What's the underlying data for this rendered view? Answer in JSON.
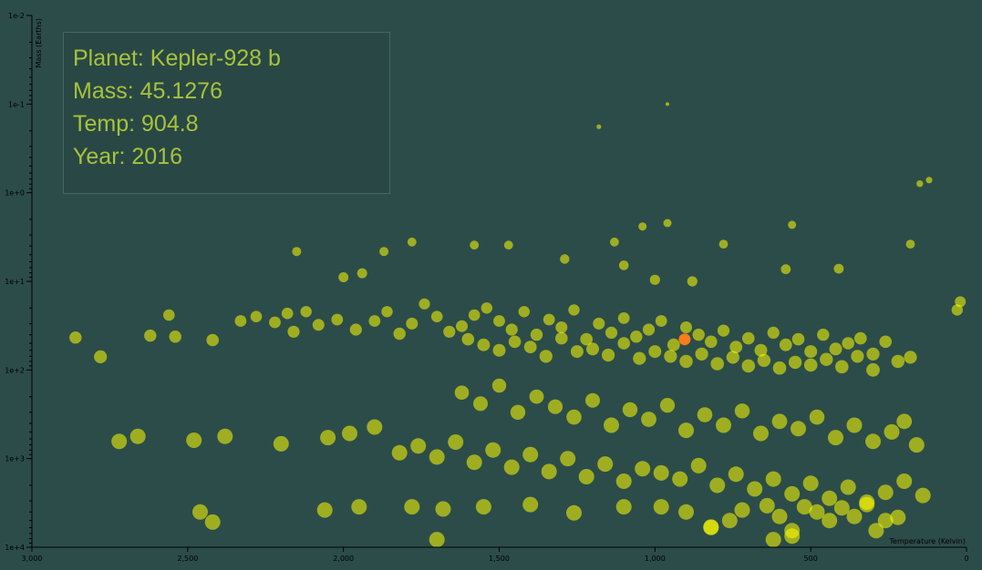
{
  "tooltip": {
    "planet_label": "Planet: Kepler-928 b",
    "mass_label": "Mass: 45.1276",
    "temp_label": "Temp: 904.8",
    "year_label": "Year: 2016"
  },
  "colors": {
    "background": "#2c4c4a",
    "point": "#ffff00",
    "highlight": "#ff7a1a",
    "axis": "#000000",
    "tooltip_text": "#a8c23c",
    "tooltip_border": "#4b6560"
  },
  "chart_data": {
    "type": "scatter",
    "xlabel": "Temperature (Kelvin)",
    "ylabel": "Mass (Earths)",
    "x_scale": "linear",
    "x_reversed": true,
    "xlim": [
      3000,
      0
    ],
    "y_scale": "log",
    "y_reversed": true,
    "ylim": [
      0.01,
      10000
    ],
    "x_ticks": [
      3000,
      2500,
      2000,
      1500,
      1000,
      500,
      0
    ],
    "x_tick_labels": [
      "3,000",
      "2,500",
      "2,000",
      "1,500",
      "1,000",
      "500",
      "0"
    ],
    "y_ticks": [
      0.01,
      0.1,
      1,
      10,
      100,
      1000,
      10000
    ],
    "y_tick_labels": [
      "1e-2",
      "1e-1",
      "1e+0",
      "1e+1",
      "1e+2",
      "1e+3",
      "1e+4"
    ],
    "grid": false,
    "point_size_encodes": "mass",
    "highlighted": {
      "name": "Kepler-928 b",
      "x": 904.8,
      "y": 45.1276,
      "year": 2016
    },
    "points": [
      [
        1180,
        0.18
      ],
      [
        960,
        0.1
      ],
      [
        120,
        0.72
      ],
      [
        150,
        0.79
      ],
      [
        2150,
        4.6
      ],
      [
        1940,
        8.1
      ],
      [
        1870,
        4.6
      ],
      [
        1780,
        3.6
      ],
      [
        1130,
        3.6
      ],
      [
        960,
        2.2
      ],
      [
        780,
        3.8
      ],
      [
        560,
        2.3
      ],
      [
        180,
        3.8
      ],
      [
        1040,
        2.4
      ],
      [
        2000,
        9
      ],
      [
        1580,
        3.9
      ],
      [
        1470,
        3.9
      ],
      [
        1290,
        5.6
      ],
      [
        1100,
        6.6
      ],
      [
        1000,
        9.6
      ],
      [
        880,
        10
      ],
      [
        580,
        7.3
      ],
      [
        410,
        7.2
      ],
      [
        20,
        17
      ],
      [
        30,
        21
      ],
      [
        2860,
        43
      ],
      [
        2780,
        71
      ],
      [
        2620,
        41
      ],
      [
        2560,
        24
      ],
      [
        2540,
        42
      ],
      [
        2420,
        46
      ],
      [
        2330,
        28
      ],
      [
        2280,
        25
      ],
      [
        2220,
        29
      ],
      [
        2180,
        23
      ],
      [
        2160,
        37
      ],
      [
        2120,
        22
      ],
      [
        2080,
        31
      ],
      [
        2020,
        27
      ],
      [
        1960,
        35
      ],
      [
        1900,
        28
      ],
      [
        1860,
        22
      ],
      [
        1820,
        39
      ],
      [
        1780,
        30
      ],
      [
        1740,
        18
      ],
      [
        1700,
        25
      ],
      [
        1660,
        37
      ],
      [
        1620,
        32
      ],
      [
        1580,
        24
      ],
      [
        1540,
        20
      ],
      [
        1500,
        28
      ],
      [
        1460,
        35
      ],
      [
        1420,
        22
      ],
      [
        1380,
        40
      ],
      [
        1340,
        27
      ],
      [
        1300,
        33
      ],
      [
        1260,
        21
      ],
      [
        1220,
        45
      ],
      [
        1180,
        30
      ],
      [
        1140,
        38
      ],
      [
        1100,
        26
      ],
      [
        1060,
        42
      ],
      [
        1020,
        35
      ],
      [
        980,
        28
      ],
      [
        940,
        52
      ],
      [
        900,
        33
      ],
      [
        860,
        40
      ],
      [
        820,
        48
      ],
      [
        780,
        36
      ],
      [
        740,
        55
      ],
      [
        700,
        44
      ],
      [
        660,
        60
      ],
      [
        620,
        38
      ],
      [
        580,
        52
      ],
      [
        540,
        45
      ],
      [
        500,
        62
      ],
      [
        460,
        40
      ],
      [
        420,
        58
      ],
      [
        380,
        50
      ],
      [
        340,
        44
      ],
      [
        300,
        66
      ],
      [
        260,
        48
      ],
      [
        220,
        80
      ],
      [
        180,
        72
      ],
      [
        1600,
        45
      ],
      [
        1550,
        52
      ],
      [
        1500,
        60
      ],
      [
        1450,
        48
      ],
      [
        1400,
        55
      ],
      [
        1350,
        70
      ],
      [
        1300,
        44
      ],
      [
        1250,
        62
      ],
      [
        1200,
        58
      ],
      [
        1150,
        68
      ],
      [
        1100,
        50
      ],
      [
        1050,
        74
      ],
      [
        1000,
        62
      ],
      [
        950,
        70
      ],
      [
        900,
        80
      ],
      [
        850,
        66
      ],
      [
        800,
        85
      ],
      [
        750,
        72
      ],
      [
        700,
        90
      ],
      [
        650,
        78
      ],
      [
        600,
        95
      ],
      [
        550,
        82
      ],
      [
        500,
        88
      ],
      [
        450,
        76
      ],
      [
        400,
        92
      ],
      [
        350,
        70
      ],
      [
        300,
        100
      ],
      [
        1620,
        180
      ],
      [
        1560,
        240
      ],
      [
        1500,
        150
      ],
      [
        1440,
        300
      ],
      [
        1380,
        200
      ],
      [
        1320,
        260
      ],
      [
        1260,
        340
      ],
      [
        1200,
        220
      ],
      [
        1140,
        420
      ],
      [
        1080,
        280
      ],
      [
        1020,
        360
      ],
      [
        960,
        250
      ],
      [
        900,
        480
      ],
      [
        840,
        320
      ],
      [
        780,
        420
      ],
      [
        720,
        290
      ],
      [
        660,
        520
      ],
      [
        600,
        380
      ],
      [
        540,
        460
      ],
      [
        480,
        340
      ],
      [
        420,
        580
      ],
      [
        360,
        420
      ],
      [
        300,
        640
      ],
      [
        240,
        500
      ],
      [
        200,
        380
      ],
      [
        160,
        700
      ],
      [
        2480,
        620
      ],
      [
        2660,
        560
      ],
      [
        2720,
        640
      ],
      [
        2380,
        560
      ],
      [
        2200,
        680
      ],
      [
        2050,
        580
      ],
      [
        1980,
        520
      ],
      [
        1900,
        440
      ],
      [
        1820,
        860
      ],
      [
        1760,
        720
      ],
      [
        1700,
        960
      ],
      [
        1640,
        650
      ],
      [
        1580,
        1100
      ],
      [
        1520,
        800
      ],
      [
        1460,
        1250
      ],
      [
        1400,
        900
      ],
      [
        1340,
        1400
      ],
      [
        1280,
        1000
      ],
      [
        1220,
        1600
      ],
      [
        1160,
        1150
      ],
      [
        1100,
        1800
      ],
      [
        1040,
        1300
      ],
      [
        980,
        1450
      ],
      [
        920,
        1700
      ],
      [
        860,
        1200
      ],
      [
        800,
        2000
      ],
      [
        740,
        1500
      ],
      [
        680,
        2200
      ],
      [
        620,
        1700
      ],
      [
        560,
        2500
      ],
      [
        500,
        1900
      ],
      [
        440,
        2800
      ],
      [
        380,
        2100
      ],
      [
        320,
        3100
      ],
      [
        260,
        2400
      ],
      [
        200,
        1800
      ],
      [
        140,
        2600
      ],
      [
        2460,
        4000
      ],
      [
        2420,
        5200
      ],
      [
        2060,
        3800
      ],
      [
        1950,
        3500
      ],
      [
        1780,
        3500
      ],
      [
        1680,
        3700
      ],
      [
        1550,
        3500
      ],
      [
        1400,
        3300
      ],
      [
        1260,
        4100
      ],
      [
        1100,
        3500
      ],
      [
        980,
        3500
      ],
      [
        900,
        4000
      ],
      [
        820,
        6000
      ],
      [
        760,
        5000
      ],
      [
        720,
        3800
      ],
      [
        640,
        3400
      ],
      [
        600,
        4500
      ],
      [
        560,
        6500
      ],
      [
        520,
        3500
      ],
      [
        480,
        4000
      ],
      [
        440,
        5000
      ],
      [
        400,
        3600
      ],
      [
        360,
        4500
      ],
      [
        320,
        3300
      ],
      [
        260,
        5000
      ],
      [
        220,
        4600
      ],
      [
        1700,
        8200
      ],
      [
        820,
        5900
      ],
      [
        560,
        7500
      ],
      [
        620,
        8200
      ],
      [
        290,
        6500
      ]
    ]
  }
}
